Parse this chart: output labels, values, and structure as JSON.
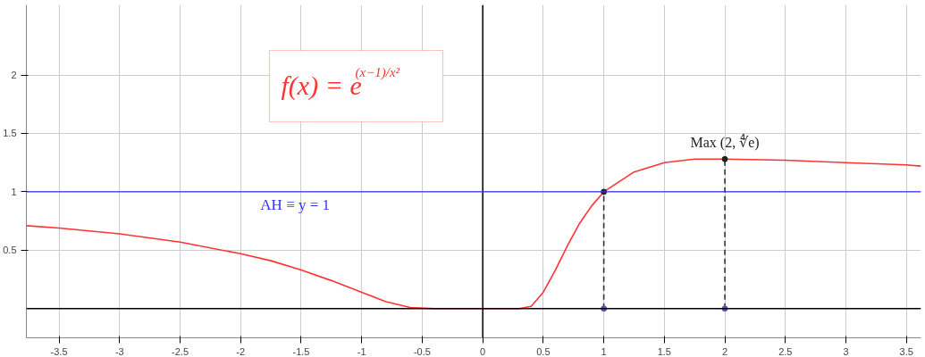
{
  "chart_data": {
    "type": "line",
    "title": "f(x) = e$^{(x−1)/x²}$",
    "xlim": [
      -3.77,
      3.62
    ],
    "ylim": [
      -0.25,
      2.6
    ],
    "xticks": [
      -3.5,
      -3,
      -2.5,
      -2,
      -1.5,
      -1,
      -0.5,
      0,
      0.5,
      1,
      1.5,
      2,
      2.5,
      3,
      3.5
    ],
    "yticks": [
      0.5,
      1,
      1.5,
      2
    ],
    "grid": true,
    "marker": "none",
    "series": [
      {
        "color": "#ff3333",
        "line_style": "solid",
        "x": [
          -3.77,
          -3.5,
          -3,
          -2.5,
          -2,
          -1.75,
          -1.5,
          -1.25,
          -1,
          -0.8,
          -0.6,
          -0.4,
          -0.2,
          0.2,
          0.3,
          0.4,
          0.5,
          0.6,
          0.7,
          0.8,
          0.9,
          1,
          1.25,
          1.5,
          1.75,
          2,
          2.5,
          3,
          3.5,
          3.62
        ],
        "values": [
          0.71,
          0.69,
          0.64,
          0.57,
          0.47,
          0.41,
          0.33,
          0.24,
          0.14,
          0.06,
          0.01,
          0,
          0,
          0,
          0,
          0.02,
          0.14,
          0.33,
          0.54,
          0.73,
          0.88,
          1,
          1.17,
          1.25,
          1.28,
          1.28,
          1.27,
          1.25,
          1.23,
          1.22
        ]
      },
      {
        "color": "#333333",
        "line_style": "dashed",
        "x": [
          1,
          1
        ],
        "values": [
          0,
          1
        ]
      },
      {
        "color": "#333333",
        "line_style": "dashed",
        "x": [
          2,
          2
        ],
        "values": [
          0,
          1.28
        ]
      },
      {
        "type": "scatter",
        "color": "#222222",
        "x": [
          1,
          2
        ],
        "values": [
          1,
          1.28
        ]
      },
      {
        "type": "scatter",
        "color": "#5555aa",
        "x": [
          1,
          2
        ],
        "values": [
          0,
          0
        ]
      }
    ],
    "ref_lines": [
      {
        "axis": "y",
        "value": 1,
        "label": "AH ≡ y = 1",
        "color": "#3333ff"
      }
    ],
    "annotations": [
      {
        "text": "Max (2, ∜e)",
        "x": 2,
        "y": 1.28
      }
    ]
  }
}
